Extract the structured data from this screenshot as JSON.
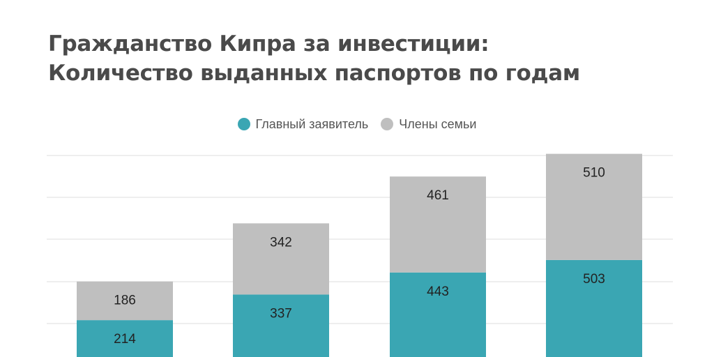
{
  "title_lines": [
    "Гражданство Кипра за инвестиции:",
    "Количество выданных паспортов по годам"
  ],
  "chart_data": {
    "type": "bar",
    "stacked": true,
    "title": "Гражданство Кипра за инвестиции: Количество выданных паспортов по годам",
    "xlabel": "",
    "ylabel": "",
    "categories": [
      "",
      "",
      "",
      ""
    ],
    "series": [
      {
        "name": "Главный заявитель",
        "color": "#3aa6b3",
        "values": [
          214,
          337,
          443,
          503
        ]
      },
      {
        "name": "Члены семьи",
        "color": "#bfbfbf",
        "values": [
          186,
          342,
          461,
          510
        ]
      }
    ],
    "grid": true,
    "gridline_color": "#dddddd",
    "legend_position": "top-center"
  }
}
